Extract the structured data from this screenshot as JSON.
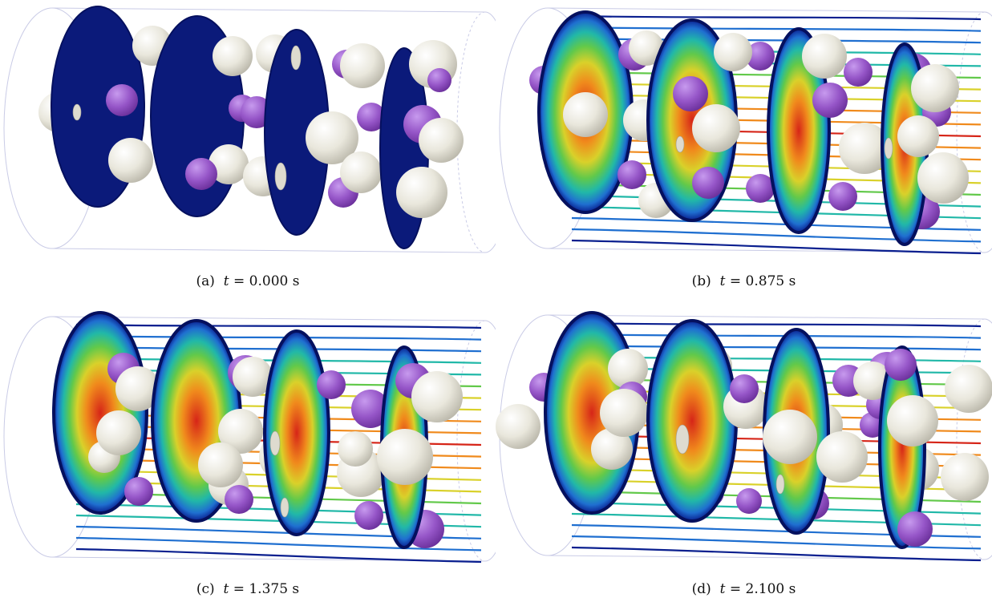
{
  "figure": {
    "panels": [
      {
        "id": "a",
        "label": "(a)",
        "variable": "t",
        "eq": "=",
        "value": "0.000",
        "unit": "s",
        "state": "initial",
        "flow_colored": false,
        "streamlines": false
      },
      {
        "id": "b",
        "label": "(b)",
        "variable": "t",
        "eq": "=",
        "value": "0.875",
        "unit": "s",
        "state": "developing",
        "flow_colored": true,
        "streamlines": true
      },
      {
        "id": "c",
        "label": "(c)",
        "variable": "t",
        "eq": "=",
        "value": "1.375",
        "unit": "s",
        "state": "developing",
        "flow_colored": true,
        "streamlines": true
      },
      {
        "id": "d",
        "label": "(d)",
        "variable": "t",
        "eq": "=",
        "value": "2.100",
        "unit": "s",
        "state": "developing",
        "flow_colored": true,
        "streamlines": true
      }
    ],
    "colors": {
      "pipe_outline": "#c9cbe6",
      "slice_dark": "#0b1a7a",
      "slice_edge": "#05105e",
      "particle_large": "#e9e7dc",
      "particle_large_shade": "#b8b5a8",
      "particle_small": "#9656c8",
      "particle_small_shade": "#6a2f9a",
      "colormap": [
        "#0a1f8f",
        "#1f6fd0",
        "#21b8a8",
        "#62c94a",
        "#d9d12a",
        "#f08a1c",
        "#d62518"
      ]
    }
  }
}
